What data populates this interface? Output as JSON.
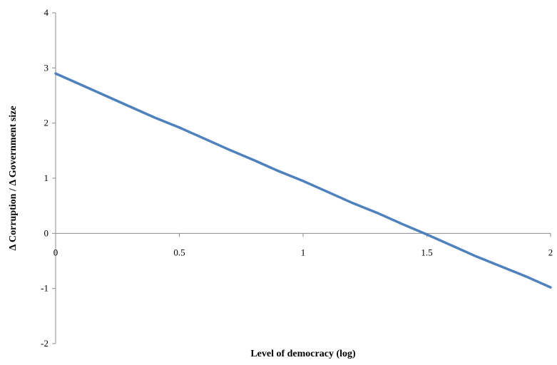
{
  "chart_data": {
    "type": "line",
    "title": "",
    "xlabel": "Level of democracy (log)",
    "ylabel": "Δ Corruption / Δ Government size",
    "xlim": [
      0,
      2
    ],
    "ylim": [
      -2,
      4
    ],
    "x_ticks": [
      0,
      0.5,
      1,
      1.5,
      2
    ],
    "y_ticks": [
      -2,
      -1,
      0,
      1,
      2,
      3,
      4
    ],
    "x_tick_labels": [
      "0",
      "0.5",
      "1",
      "1.5",
      "2"
    ],
    "y_tick_labels": [
      "-2",
      "-1",
      "0",
      "1",
      "2",
      "3",
      "4"
    ],
    "grid": false,
    "legend": "none",
    "series": [
      {
        "color": "#4f81bd",
        "x": [
          0,
          0.1,
          0.2,
          0.3,
          0.4,
          0.5,
          0.6,
          0.7,
          0.8,
          0.9,
          1.0,
          1.1,
          1.2,
          1.3,
          1.4,
          1.5,
          1.6,
          1.7,
          1.8,
          1.9,
          2.0
        ],
        "y": [
          2.9,
          2.7,
          2.5,
          2.3,
          2.1,
          1.92,
          1.72,
          1.52,
          1.33,
          1.13,
          0.95,
          0.75,
          0.55,
          0.37,
          0.17,
          -0.02,
          -0.22,
          -0.42,
          -0.6,
          -0.78,
          -0.98
        ]
      }
    ]
  }
}
